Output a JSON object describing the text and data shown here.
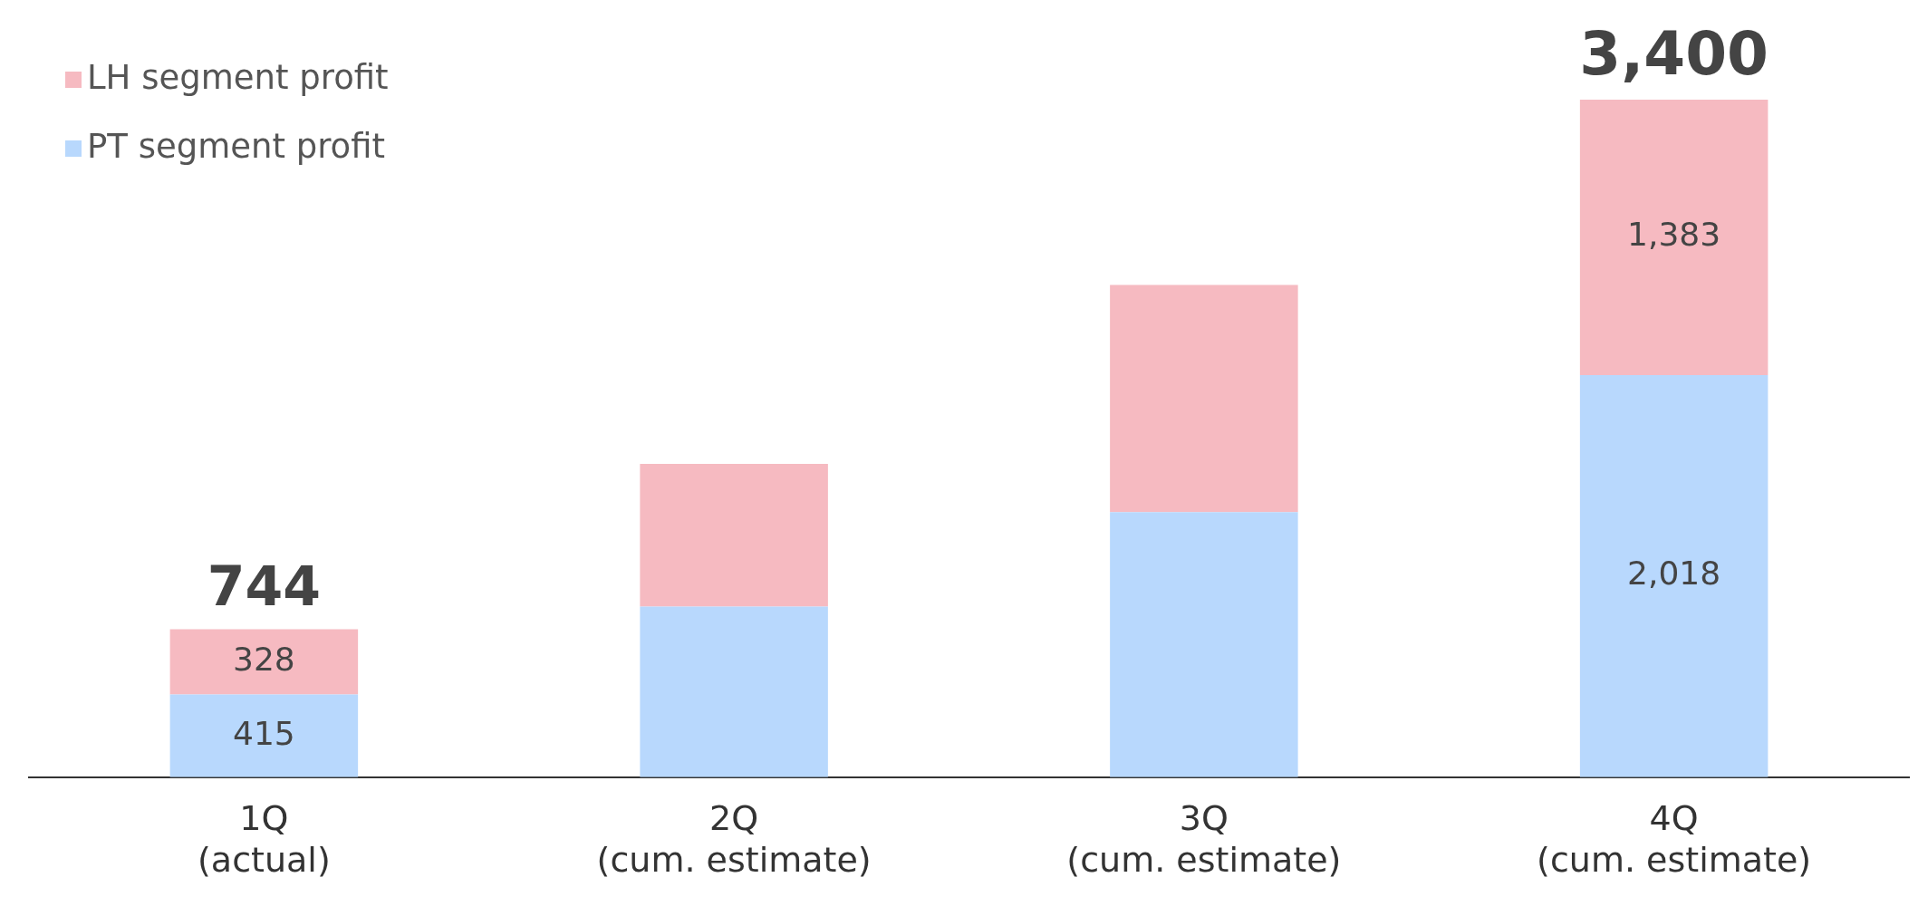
{
  "chart_data": {
    "type": "bar",
    "stacked": true,
    "categories": [
      "1Q\n(actual)",
      "2Q\n(cum. estimate)",
      "3Q\n(cum. estimate)",
      "4Q\n(cum. estimate)"
    ],
    "series": [
      {
        "name": "PT segment profit",
        "color": "#b8d8fd",
        "values": [
          415,
          856,
          1330,
          2018
        ],
        "value_labels": [
          "415",
          null,
          null,
          "2,018"
        ]
      },
      {
        "name": "LH segment profit",
        "color": "#f6bac1",
        "values": [
          328,
          717,
          1141,
          1383
        ],
        "value_labels": [
          "328",
          null,
          null,
          "1,383"
        ]
      }
    ],
    "totals": [
      "744",
      null,
      null,
      "3,400"
    ],
    "legend": "top left",
    "grid": false
  }
}
